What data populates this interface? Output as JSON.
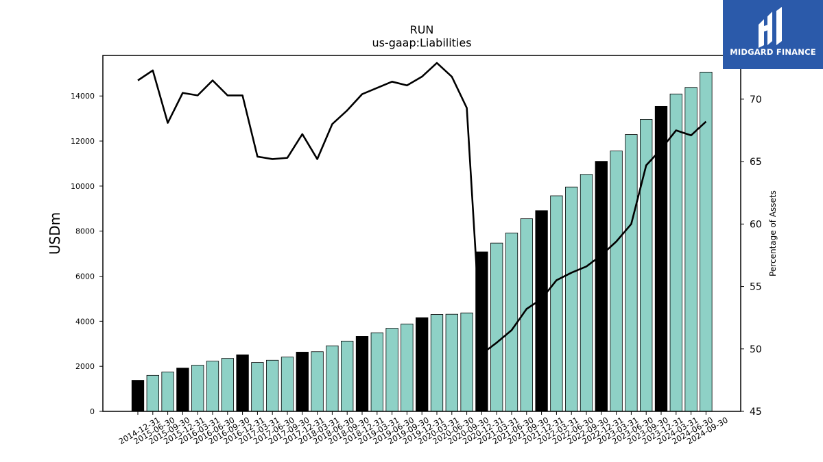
{
  "chart_data": {
    "type": "bar",
    "title": "RUN",
    "subtitle": "us-gaap:Liabilities",
    "ylabel": "USDm",
    "y2label": "Percentage of Assets",
    "ylim": [
      0,
      15800
    ],
    "y2lim": [
      45,
      73.5
    ],
    "yticks": [
      0,
      2000,
      4000,
      6000,
      8000,
      10000,
      12000,
      14000
    ],
    "y2ticks": [
      45,
      50,
      55,
      60,
      65,
      70
    ],
    "grid": false,
    "categories": [
      "2014-12-31",
      "2015-06-30",
      "2015-09-30",
      "2015-12-31",
      "2016-03-31",
      "2016-06-30",
      "2016-09-30",
      "2016-12-31",
      "2017-03-31",
      "2017-06-30",
      "2017-09-30",
      "2017-12-31",
      "2018-03-31",
      "2018-06-30",
      "2018-09-30",
      "2018-12-31",
      "2019-03-31",
      "2019-06-30",
      "2019-09-30",
      "2019-12-31",
      "2020-03-31",
      "2020-06-30",
      "2020-09-30",
      "2020-12-31",
      "2021-03-31",
      "2021-06-30",
      "2021-09-30",
      "2021-12-31",
      "2022-03-31",
      "2022-06-30",
      "2022-09-30",
      "2022-12-31",
      "2023-03-31",
      "2023-06-30",
      "2023-09-30",
      "2023-12-31",
      "2024-03-31",
      "2024-06-30",
      "2024-09-30"
    ],
    "series": [
      {
        "type": "bar",
        "values": [
          1380,
          1600,
          1750,
          1920,
          2050,
          2230,
          2350,
          2510,
          2170,
          2270,
          2410,
          2630,
          2650,
          2910,
          3120,
          3330,
          3490,
          3690,
          3880,
          4160,
          4300,
          4310,
          4370,
          7080,
          7470,
          7920,
          8550,
          8910,
          9570,
          9960,
          10520,
          11100,
          11560,
          12290,
          12960,
          13540,
          14090,
          14380,
          15060
        ],
        "colors": [
          "#000000",
          "#8ed1c6",
          "#8ed1c6",
          "#000000",
          "#8ed1c6",
          "#8ed1c6",
          "#8ed1c6",
          "#000000",
          "#8ed1c6",
          "#8ed1c6",
          "#8ed1c6",
          "#000000",
          "#8ed1c6",
          "#8ed1c6",
          "#8ed1c6",
          "#000000",
          "#8ed1c6",
          "#8ed1c6",
          "#8ed1c6",
          "#000000",
          "#8ed1c6",
          "#8ed1c6",
          "#8ed1c6",
          "#000000",
          "#8ed1c6",
          "#8ed1c6",
          "#8ed1c6",
          "#000000",
          "#8ed1c6",
          "#8ed1c6",
          "#8ed1c6",
          "#000000",
          "#8ed1c6",
          "#8ed1c6",
          "#8ed1c6",
          "#000000",
          "#8ed1c6",
          "#8ed1c6",
          "#8ed1c6"
        ]
      },
      {
        "type": "line",
        "axis": "right",
        "color": "#000000",
        "values": [
          71.5,
          72.3,
          68.1,
          70.5,
          70.3,
          71.5,
          70.3,
          70.3,
          65.4,
          65.2,
          65.3,
          67.2,
          65.2,
          68.0,
          69.1,
          70.4,
          70.9,
          71.4,
          71.1,
          71.8,
          72.9,
          71.8,
          69.3,
          49.6,
          50.5,
          51.5,
          53.2,
          54.0,
          55.5,
          56.1,
          56.6,
          57.5,
          58.6,
          60.0,
          64.7,
          66.0,
          67.5,
          67.1,
          68.2
        ]
      }
    ],
    "colors": {
      "bar_primary": "#8ed1c6",
      "bar_highlight": "#000000",
      "line": "#000000",
      "logo_bg": "#2b5aaa"
    }
  },
  "logo": {
    "text": "MIDGARD FINANCE",
    "icon": "midgard-logo-icon"
  }
}
